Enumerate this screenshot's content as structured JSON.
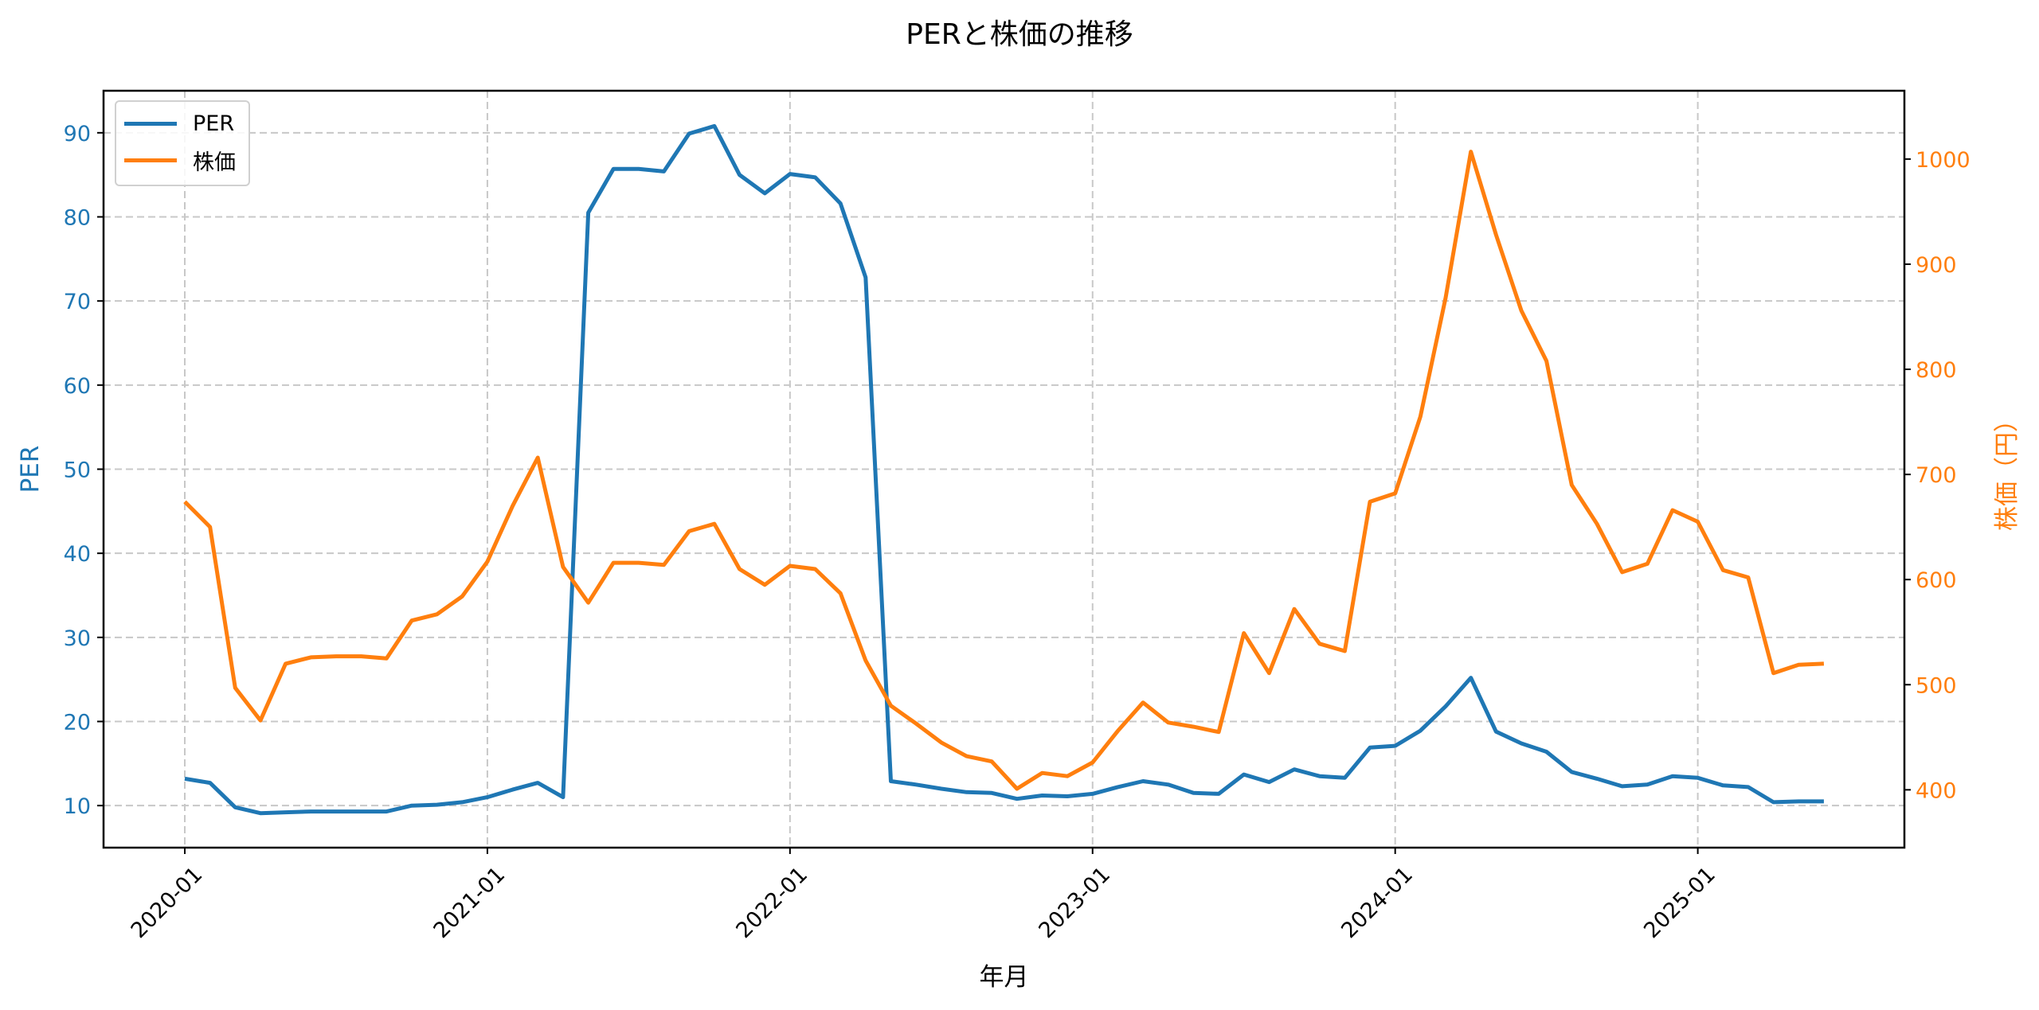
{
  "chart_data": {
    "type": "line",
    "title": "PERと株価の推移",
    "xlabel": "年月",
    "ylabel": "PER",
    "ylabel_right": "株価（円）",
    "ylim": [
      5,
      95
    ],
    "ylim_right": [
      345,
      1065
    ],
    "yticks": [
      10,
      20,
      30,
      40,
      50,
      60,
      70,
      80,
      90
    ],
    "yticks_right": [
      400,
      500,
      600,
      700,
      800,
      900,
      1000
    ],
    "xtick_labels": [
      "2020-01",
      "2021-01",
      "2022-01",
      "2023-01",
      "2024-01",
      "2025-01"
    ],
    "grid": true,
    "legend_position": "upper left",
    "x": [
      "2020-01",
      "2020-02",
      "2020-03",
      "2020-04",
      "2020-05",
      "2020-06",
      "2020-07",
      "2020-08",
      "2020-09",
      "2020-10",
      "2020-11",
      "2020-12",
      "2021-01",
      "2021-02",
      "2021-03",
      "2021-04",
      "2021-05",
      "2021-06",
      "2021-07",
      "2021-08",
      "2021-09",
      "2021-10",
      "2021-11",
      "2021-12",
      "2022-01",
      "2022-02",
      "2022-03",
      "2022-04",
      "2022-05",
      "2022-06",
      "2022-07",
      "2022-08",
      "2022-09",
      "2022-10",
      "2022-11",
      "2022-12",
      "2023-01",
      "2023-02",
      "2023-03",
      "2023-04",
      "2023-05",
      "2023-06",
      "2023-07",
      "2023-08",
      "2023-09",
      "2023-10",
      "2023-11",
      "2023-12",
      "2024-01",
      "2024-02",
      "2024-03",
      "2024-04",
      "2024-05",
      "2024-06",
      "2024-07",
      "2024-08",
      "2024-09",
      "2024-10",
      "2024-11",
      "2024-12",
      "2025-01",
      "2025-02",
      "2025-03",
      "2025-04",
      "2025-05",
      "2025-06"
    ],
    "series": [
      {
        "name": "PER",
        "axis": "left",
        "color": "#1f77b4",
        "values": [
          13.2,
          12.7,
          9.8,
          9.1,
          9.2,
          9.3,
          9.3,
          9.3,
          9.3,
          10.0,
          10.1,
          10.4,
          11.0,
          11.9,
          12.7,
          11.0,
          80.5,
          85.7,
          85.7,
          85.4,
          89.9,
          90.8,
          85.0,
          82.8,
          85.1,
          84.7,
          81.6,
          72.8,
          12.9,
          12.5,
          12.0,
          11.6,
          11.5,
          10.8,
          11.2,
          11.1,
          11.4,
          12.2,
          12.9,
          12.5,
          11.5,
          11.4,
          13.7,
          12.8,
          14.3,
          13.5,
          13.3,
          16.9,
          17.1,
          18.9,
          21.8,
          25.2,
          18.8,
          17.4,
          16.4,
          14.0,
          13.2,
          12.3,
          12.5,
          13.5,
          13.3,
          12.4,
          12.2,
          10.4,
          10.5,
          10.5
        ]
      },
      {
        "name": "株価",
        "axis": "right",
        "color": "#ff7f0e",
        "values": [
          674,
          650,
          497,
          466,
          520,
          526,
          527,
          527,
          525,
          561,
          567,
          584,
          617,
          670,
          716,
          612,
          578,
          616,
          616,
          614,
          646,
          653,
          610,
          595,
          613,
          610,
          587,
          523,
          480,
          463,
          445,
          432,
          427,
          401,
          416,
          413,
          426,
          456,
          483,
          464,
          460,
          455,
          549,
          511,
          572,
          539,
          532,
          674,
          682,
          755,
          868,
          1007,
          928,
          856,
          808,
          690,
          653,
          607,
          615,
          666,
          655,
          609,
          602,
          511,
          519,
          520
        ]
      }
    ]
  }
}
